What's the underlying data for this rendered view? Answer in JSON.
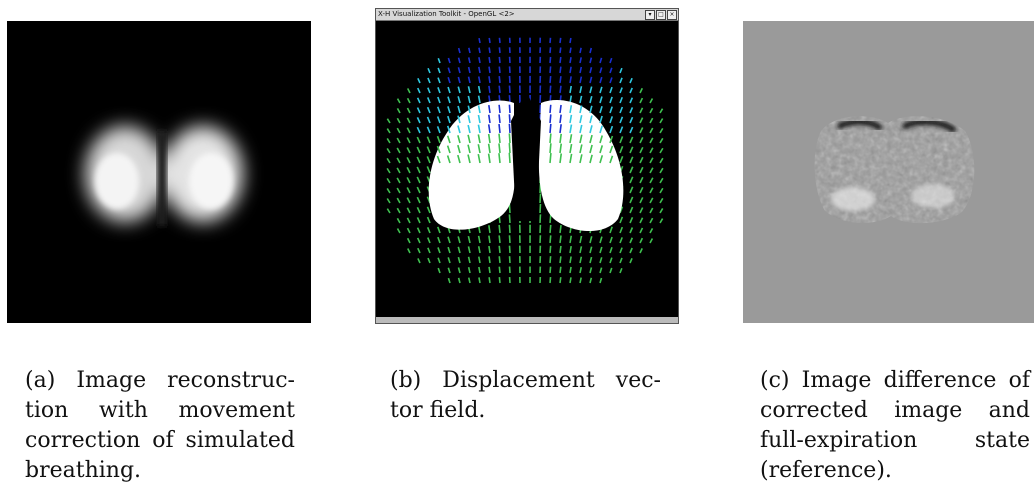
{
  "figures": [
    {
      "id": "a",
      "caption_lines": [
        "(a) Image reconstruc-",
        "tion with movement",
        "correction of simulated",
        "breathing."
      ]
    },
    {
      "id": "b",
      "window_title": "X-H Visualization Toolkit - OpenGL <2>",
      "window_buttons": [
        "▾",
        "□",
        "×"
      ],
      "caption_lines": [
        "(b) Displacement vec-",
        "tor field."
      ]
    },
    {
      "id": "c",
      "caption_lines": [
        "(c) Image difference of",
        "corrected image and",
        "full-expiration state",
        "(reference)."
      ]
    }
  ],
  "colors": {
    "background_a": "#000000",
    "background_b": "#000000",
    "background_c": "#9a9a9a",
    "vector_green": "#3fc050",
    "vector_cyan": "#2fc8e0",
    "vector_blue": "#1a2fd0"
  }
}
